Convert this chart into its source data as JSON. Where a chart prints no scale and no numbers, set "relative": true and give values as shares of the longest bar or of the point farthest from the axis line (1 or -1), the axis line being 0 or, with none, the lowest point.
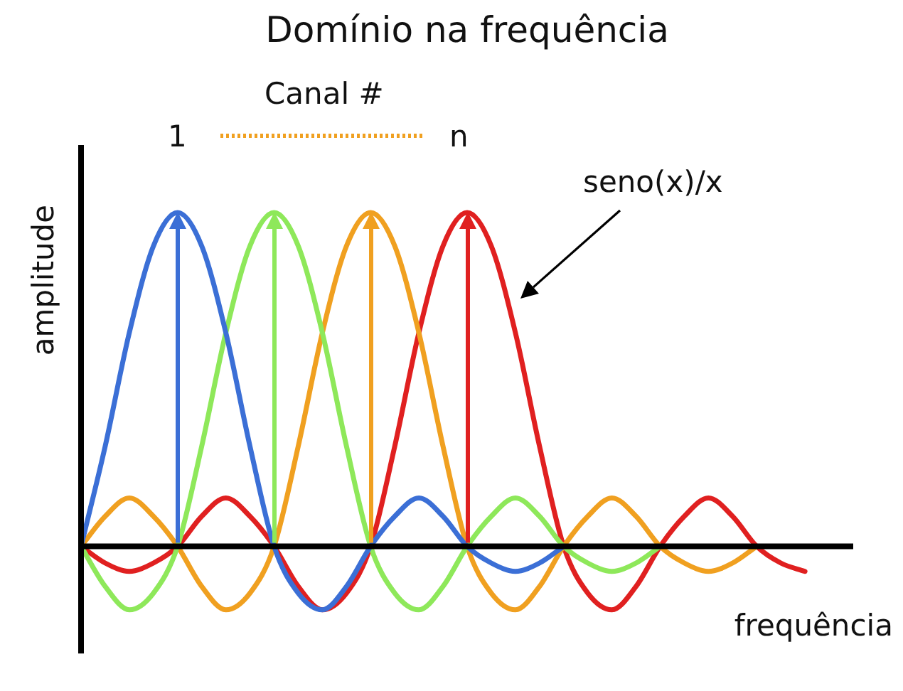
{
  "chart_data": {
    "type": "line",
    "title": "Domínio na frequência",
    "xlabel": "frequência",
    "ylabel": "amplitude",
    "legend_title": "Canal #",
    "annotations": [
      "1",
      "n",
      "seno(x)/x"
    ],
    "relative": true,
    "grid": false,
    "legend": false,
    "marker": "none",
    "line_style": "solid",
    "categories": [
      null,
      null,
      null,
      null,
      null,
      null,
      null,
      null,
      null,
      null,
      null,
      null,
      null,
      null,
      null,
      null,
      null,
      null,
      null,
      null,
      null,
      null,
      null,
      null,
      null,
      null,
      null,
      null,
      null,
      null,
      null,
      null,
      null
    ],
    "series": [
      {
        "color": "#3b6fd6",
        "values": [
          0,
          0.3,
          0.64,
          0.9,
          1,
          0.9,
          0.64,
          0.3,
          0,
          -0.14,
          -0.19,
          -0.12,
          0,
          0.09,
          0.145,
          0.09,
          0,
          -0.05,
          -0.075,
          -0.05,
          0,
          null,
          null,
          null,
          null,
          null,
          null,
          null,
          null,
          null,
          null,
          null,
          null
        ]
      },
      {
        "color": "#8ee85a",
        "values": [
          0,
          -0.12,
          -0.19,
          -0.14,
          0,
          0.3,
          0.64,
          0.9,
          1,
          0.9,
          0.64,
          0.3,
          0,
          -0.14,
          -0.19,
          -0.12,
          0,
          0.09,
          0.145,
          0.09,
          0,
          -0.05,
          -0.075,
          -0.05,
          0,
          null,
          null,
          null,
          null,
          null,
          null,
          null,
          null
        ]
      },
      {
        "color": "#f0a020",
        "values": [
          0,
          0.09,
          0.145,
          0.09,
          0,
          -0.12,
          -0.19,
          -0.14,
          0,
          0.3,
          0.64,
          0.9,
          1,
          0.9,
          0.64,
          0.3,
          0,
          -0.14,
          -0.19,
          -0.12,
          0,
          0.09,
          0.145,
          0.09,
          0,
          -0.05,
          -0.075,
          -0.05,
          0,
          null,
          null,
          null,
          null
        ]
      },
      {
        "color": "#e02020",
        "values": [
          0,
          -0.05,
          -0.075,
          -0.05,
          0,
          0.09,
          0.145,
          0.09,
          0,
          -0.12,
          -0.19,
          -0.14,
          0,
          0.3,
          0.64,
          0.9,
          1,
          0.9,
          0.64,
          0.3,
          0,
          -0.14,
          -0.19,
          -0.12,
          0,
          0.09,
          0.145,
          0.09,
          0,
          -0.05,
          -0.075,
          null,
          null
        ]
      }
    ]
  }
}
